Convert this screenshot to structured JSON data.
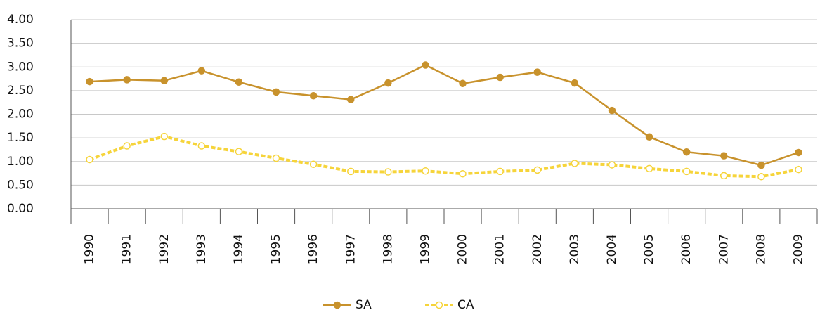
{
  "chart_data": {
    "type": "line",
    "categories": [
      "1990",
      "1991",
      "1992",
      "1993",
      "1994",
      "1995",
      "1996",
      "1997",
      "1998",
      "1999",
      "2000",
      "2001",
      "2002",
      "2003",
      "2004",
      "2005",
      "2006",
      "2007",
      "2008",
      "2009"
    ],
    "series": [
      {
        "name": "SA",
        "color": "#c8922c",
        "values": [
          2.69,
          2.73,
          2.71,
          2.92,
          2.68,
          2.47,
          2.39,
          2.31,
          2.66,
          3.04,
          2.65,
          2.78,
          2.89,
          2.66,
          2.08,
          1.52,
          1.2,
          1.12,
          0.92,
          1.19
        ]
      },
      {
        "name": "CA",
        "color": "#f6d43a",
        "values": [
          1.04,
          1.33,
          1.53,
          1.33,
          1.21,
          1.07,
          0.94,
          0.79,
          0.78,
          0.8,
          0.74,
          0.79,
          0.82,
          0.96,
          0.93,
          0.85,
          0.79,
          0.7,
          0.68,
          0.83
        ]
      }
    ],
    "ylim": [
      0,
      4
    ],
    "yticks": [
      {
        "value": 0,
        "label": "0.00"
      },
      {
        "value": 0.5,
        "label": "0.50"
      },
      {
        "value": 1,
        "label": "1.00"
      },
      {
        "value": 1.5,
        "label": "1.50"
      },
      {
        "value": 2,
        "label": "2.00"
      },
      {
        "value": 2.5,
        "label": "2.50"
      },
      {
        "value": 3,
        "label": "3.00"
      },
      {
        "value": 3.5,
        "label": "3.50"
      },
      {
        "value": 4,
        "label": "4.00"
      }
    ],
    "grid": true
  }
}
